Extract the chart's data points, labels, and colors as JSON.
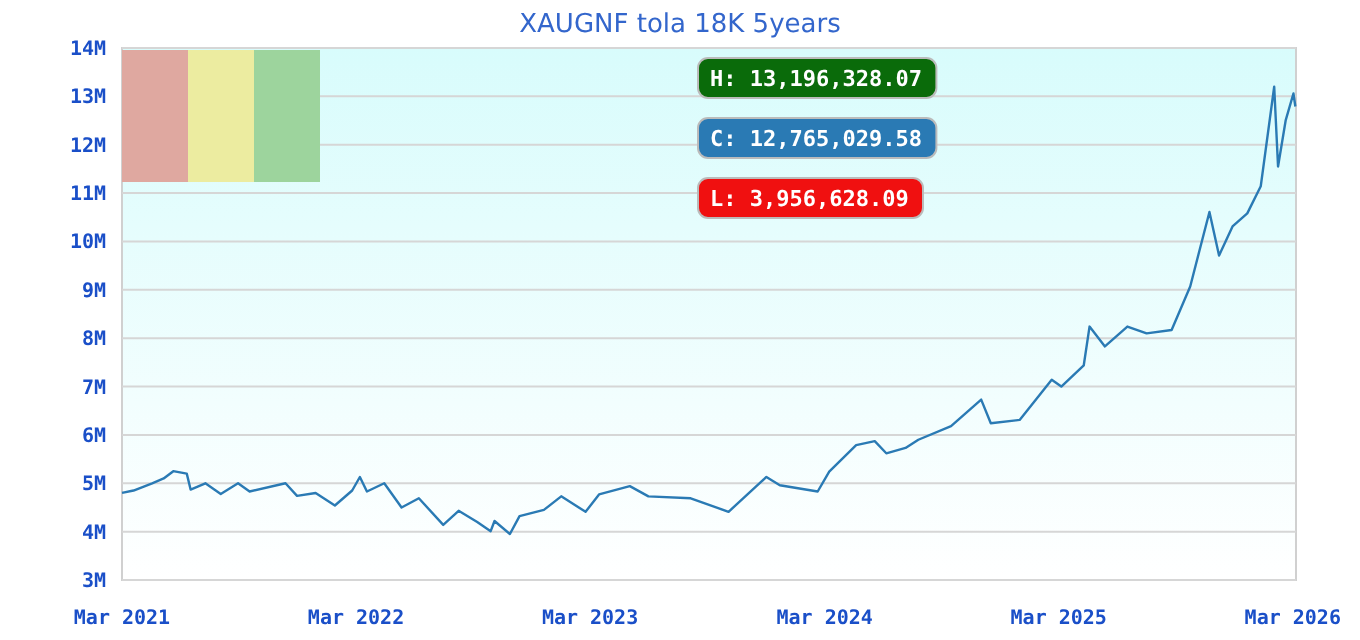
{
  "chart_data": {
    "type": "line",
    "title": "XAUGNF tola 18K 5years",
    "x": [
      "2021-03-01",
      "2021-03-19",
      "2021-04-17",
      "2021-05-05",
      "2021-05-20",
      "2021-06-10",
      "2021-06-16",
      "2021-07-09",
      "2021-08-02",
      "2021-08-29",
      "2021-09-16",
      "2021-11-11",
      "2021-11-29",
      "2021-12-28",
      "2022-01-27",
      "2022-02-23",
      "2022-03-07",
      "2022-03-18",
      "2022-04-14",
      "2022-05-11",
      "2022-06-07",
      "2022-07-15",
      "2022-08-08",
      "2022-09-06",
      "2022-09-27",
      "2022-10-03",
      "2022-10-27",
      "2022-11-11",
      "2022-12-19",
      "2023-01-15",
      "2023-02-22",
      "2023-03-15",
      "2023-05-02",
      "2023-05-31",
      "2023-08-05",
      "2023-10-03",
      "2023-12-01",
      "2023-12-22",
      "2024-02-19",
      "2024-03-08",
      "2024-04-19",
      "2024-05-18",
      "2024-06-05",
      "2024-07-05",
      "2024-07-25",
      "2024-09-14",
      "2024-10-31",
      "2024-11-15",
      "2024-12-30",
      "2025-02-18",
      "2025-03-05",
      "2025-04-09",
      "2025-04-18",
      "2025-05-12",
      "2025-06-16",
      "2025-07-16",
      "2025-08-24",
      "2025-09-22",
      "2025-10-22",
      "2025-11-06",
      "2025-11-27",
      "2025-12-20",
      "2026-01-10",
      "2026-01-31",
      "2026-02-06",
      "2026-02-18",
      "2026-03-02",
      "2026-03-05"
    ],
    "series": [
      {
        "color": "#2a7ab4",
        "values": [
          4800000,
          4850000,
          5000000,
          5100000,
          5250000,
          5200000,
          4870000,
          5000000,
          4780000,
          5000000,
          4830000,
          5000000,
          4740000,
          4800000,
          4540000,
          4850000,
          5130000,
          4830000,
          5000000,
          4500000,
          4690000,
          4140000,
          4430000,
          4200000,
          4010000,
          4220000,
          3950000,
          4320000,
          4450000,
          4730000,
          4410000,
          4770000,
          4940000,
          4730000,
          4690000,
          4410000,
          5130000,
          4960000,
          4830000,
          5240000,
          5790000,
          5870000,
          5620000,
          5730000,
          5900000,
          6180000,
          6730000,
          6240000,
          6310000,
          7140000,
          7000000,
          7440000,
          8240000,
          7830000,
          8240000,
          8100000,
          8170000,
          9070000,
          10610000,
          9710000,
          10310000,
          10580000,
          11140000,
          13200000,
          11550000,
          12510000,
          13060000,
          12790000
        ]
      }
    ],
    "xlim": [
      "2021-03-01",
      "2026-03-06"
    ],
    "xticks": [
      {
        "value": "2021-03-01",
        "label": "Mar 2021"
      },
      {
        "value": "2022-03-01",
        "label": "Mar 2022"
      },
      {
        "value": "2023-03-01",
        "label": "Mar 2023"
      },
      {
        "value": "2024-03-01",
        "label": "Mar 2024"
      },
      {
        "value": "2025-03-01",
        "label": "Mar 2025"
      },
      {
        "value": "2026-03-01",
        "label": "Mar 2026"
      }
    ],
    "ylim": [
      3000000,
      14000000
    ],
    "yticks": [
      {
        "value": 3000000,
        "label": "3M"
      },
      {
        "value": 4000000,
        "label": "4M"
      },
      {
        "value": 5000000,
        "label": "5M"
      },
      {
        "value": 6000000,
        "label": "6M"
      },
      {
        "value": 7000000,
        "label": "7M"
      },
      {
        "value": 8000000,
        "label": "8M"
      },
      {
        "value": 9000000,
        "label": "9M"
      },
      {
        "value": 10000000,
        "label": "10M"
      },
      {
        "value": 11000000,
        "label": "11M"
      },
      {
        "value": 12000000,
        "label": "12M"
      },
      {
        "value": 13000000,
        "label": "13M"
      },
      {
        "value": 14000000,
        "label": "14M"
      }
    ],
    "grid": "y",
    "line_style": "solid",
    "annotations": [
      "H: 13,196,328.07",
      "C: 12,765,029.58",
      "L: 3,956,628.09"
    ]
  }
}
